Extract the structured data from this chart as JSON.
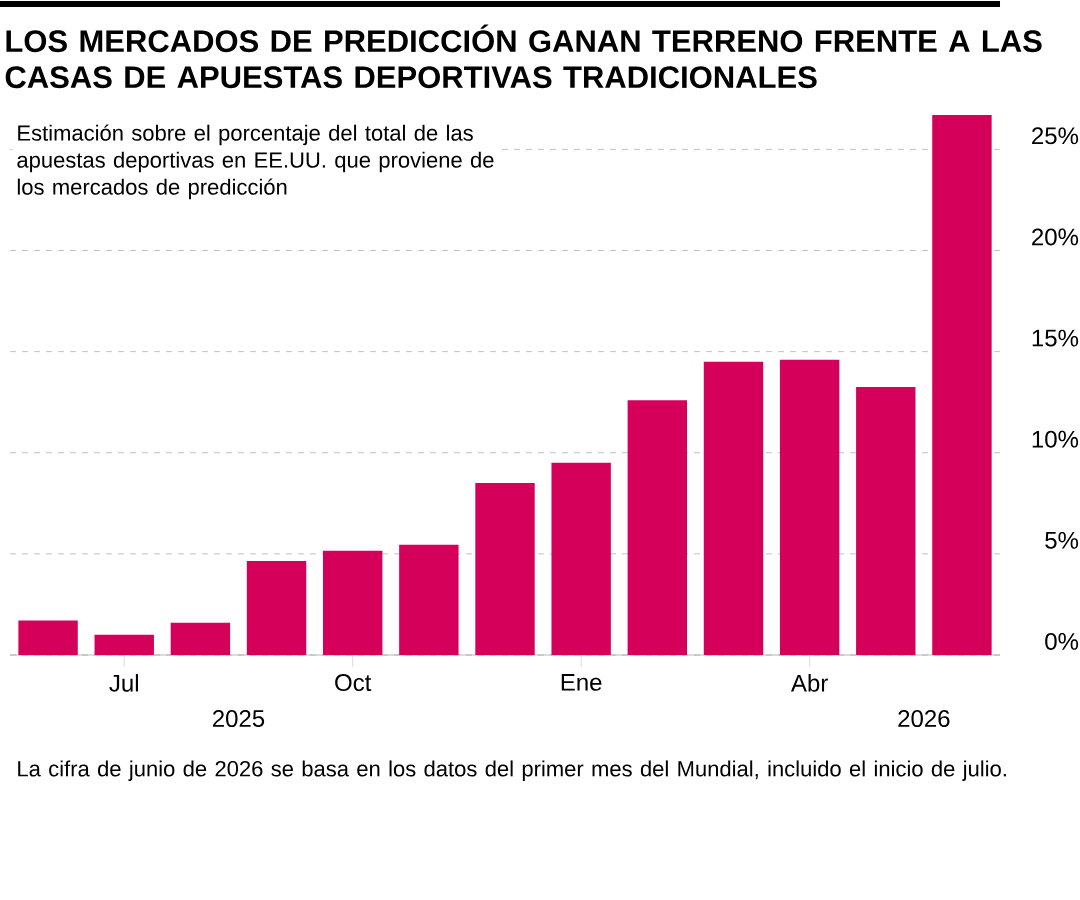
{
  "chart_data": {
    "type": "bar",
    "title": "LOS MERCADOS DE PREDICCIÓN GANAN TERRENO FRENTE A LAS CASAS DE APUESTAS DEPORTIVAS TRADICIONALES",
    "subtitle": "Estimación sobre el porcentaje del total de las apuestas deportivas en EE.UU. que proviene de los mercados de predicción",
    "categories": [
      null,
      "Jul",
      null,
      null,
      "Oct",
      null,
      null,
      "Ene",
      null,
      null,
      "Abr",
      null,
      null
    ],
    "values": [
      1.7,
      1.0,
      1.6,
      4.65,
      5.15,
      5.45,
      8.5,
      9.5,
      12.6,
      14.5,
      14.6,
      13.25,
      26.7
    ],
    "color": "#d4005a",
    "yticks": [
      {
        "value": 0,
        "label": "0%"
      },
      {
        "value": 5,
        "label": "5%"
      },
      {
        "value": 10,
        "label": "10%"
      },
      {
        "value": 15,
        "label": "15%"
      },
      {
        "value": 20,
        "label": "20%"
      },
      {
        "value": 25,
        "label": "25%"
      }
    ],
    "ylim": [
      0,
      26.7
    ],
    "grid": "y",
    "annotations": [
      "2025",
      "2026",
      "La cifra de junio de 2026 se basa en los datos del primer mes del Mundial, incluido el inicio de julio."
    ]
  }
}
